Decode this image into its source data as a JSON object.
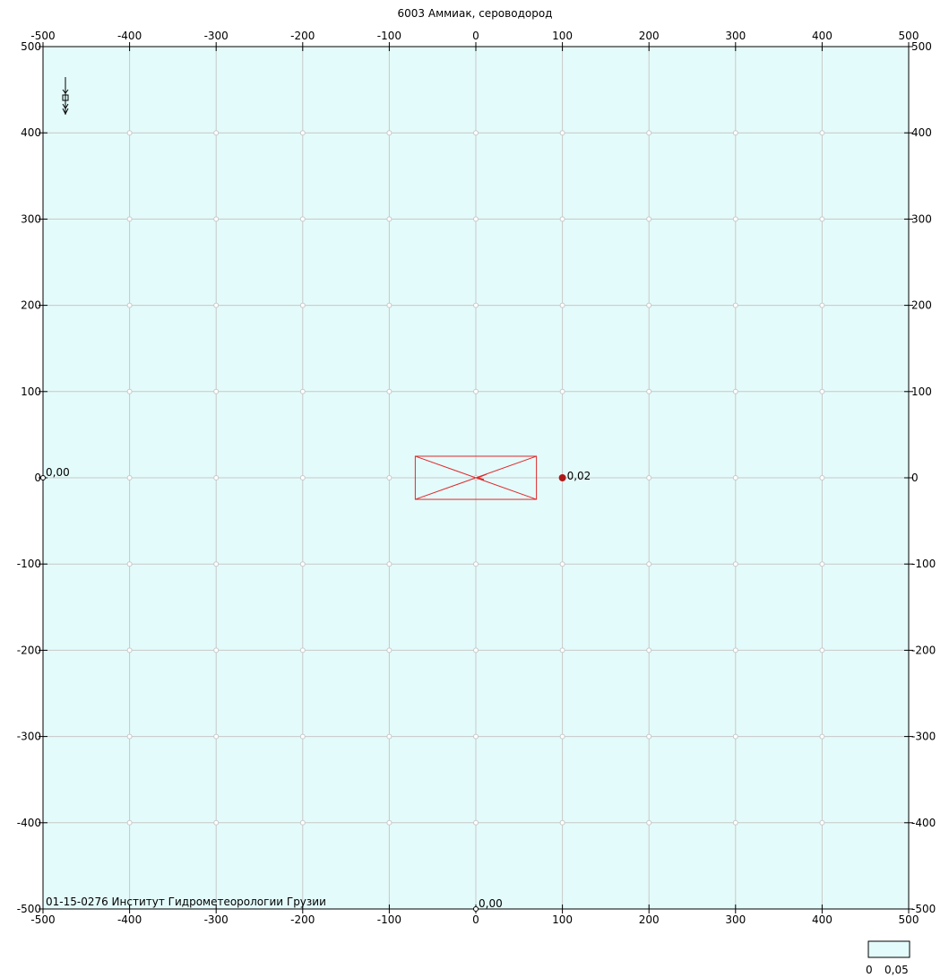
{
  "title": "6003 Аммиак, сероводород",
  "footer_text": "01-15-0276 Институт Гидрометеорологии Грузии",
  "colors": {
    "plot_bg": "#e4fbfb",
    "grid": "#c8c8c8",
    "source": "#e0282a",
    "point": "#b01818",
    "axis": "#000000"
  },
  "chart_data": {
    "type": "scatter",
    "xlim": [
      -500,
      500
    ],
    "ylim": [
      -500,
      500
    ],
    "x_ticks": [
      -500,
      -400,
      -300,
      -200,
      -100,
      0,
      100,
      200,
      300,
      400,
      500
    ],
    "y_ticks": [
      -500,
      -400,
      -300,
      -200,
      -100,
      0,
      100,
      200,
      300,
      400,
      500
    ],
    "x_tick_labels": [
      "-500",
      "-400",
      "-300",
      "-200",
      "-100",
      "0",
      "100",
      "200",
      "300",
      "400",
      "500"
    ],
    "y_tick_labels": [
      "-500",
      "-400",
      "-300",
      "-200",
      "-100",
      "0",
      "100",
      "200",
      "300",
      "400",
      "500"
    ],
    "grid": true,
    "source_rect": {
      "x1": -70,
      "y1": -25,
      "x2": 70,
      "y2": 25
    },
    "points": [
      {
        "x": 100,
        "y": 0,
        "label": "0,02"
      }
    ],
    "edge_labels": [
      {
        "x": -500,
        "y": 0,
        "label": "0,00"
      },
      {
        "x": 0,
        "y": -500,
        "label": "0,00"
      }
    ]
  },
  "legend": {
    "min_label": "0",
    "max_label": "0,05"
  }
}
